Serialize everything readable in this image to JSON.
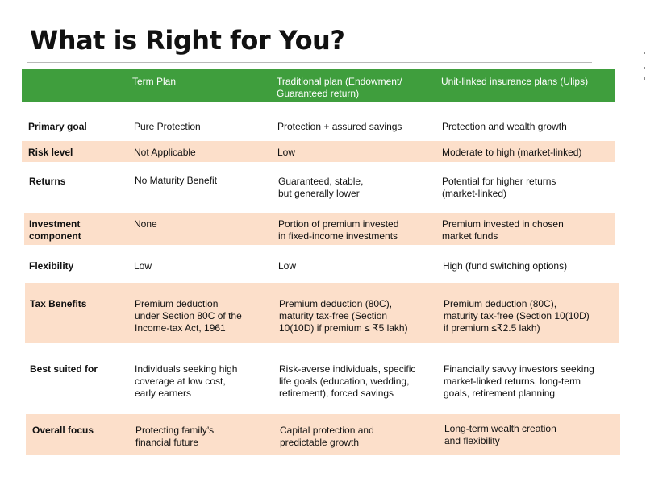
{
  "title": "What is Right for You?",
  "columns": [
    "Term Plan",
    "Traditional plan (Endowment/\nGuaranteed return)",
    "Unit-linked insurance plans (Ulips)"
  ],
  "rows": [
    {
      "label": "Primary goal",
      "term": "Pure Protection",
      "traditional": "Protection + assured savings",
      "ulip": "Protection and wealth growth"
    },
    {
      "label": "Risk level",
      "term": "Not Applicable",
      "traditional": "Low",
      "ulip": "Moderate to high (market-linked)"
    },
    {
      "label": "Returns",
      "term": "No Maturity Benefit",
      "traditional": "Guaranteed, stable,\nbut generally lower",
      "ulip": "Potential for higher returns\n(market-linked)"
    },
    {
      "label": "Investment\ncomponent",
      "term": "None",
      "traditional": "Portion of premium invested\nin fixed-income investments",
      "ulip": "Premium invested in chosen\nmarket funds"
    },
    {
      "label": "Flexibility",
      "term": "Low",
      "traditional": "Low",
      "ulip": "High (fund switching options)"
    },
    {
      "label": "Tax Benefits",
      "term": "Premium deduction\nunder Section 80C of the\nIncome-tax Act, 1961",
      "traditional": "Premium deduction (80C),\nmaturity tax-free (Section\n10(10D) if premium ≤ ₹5 lakh)",
      "ulip": "Premium deduction (80C),\nmaturity tax-free (Section 10(10D)\nif premium ≤₹2.5 lakh)"
    },
    {
      "label": "Best suited for",
      "term": "Individuals seeking high\ncoverage at low cost,\nearly earners",
      "traditional": "Risk-averse individuals, specific\nlife goals (education, wedding,\nretirement), forced savings",
      "ulip": "Financially savvy investors seeking\nmarket-linked returns, long-term\ngoals, retirement planning"
    },
    {
      "label": "Overall focus",
      "term": "Protecting family’s\nfinancial future",
      "traditional": "Capital protection and\npredictable growth",
      "ulip": "Long-term wealth creation\nand flexibility"
    }
  ],
  "colors": {
    "header_green": "#3f9e3d",
    "band_peach": "#fcdfca",
    "header_text": "#ffffff"
  }
}
